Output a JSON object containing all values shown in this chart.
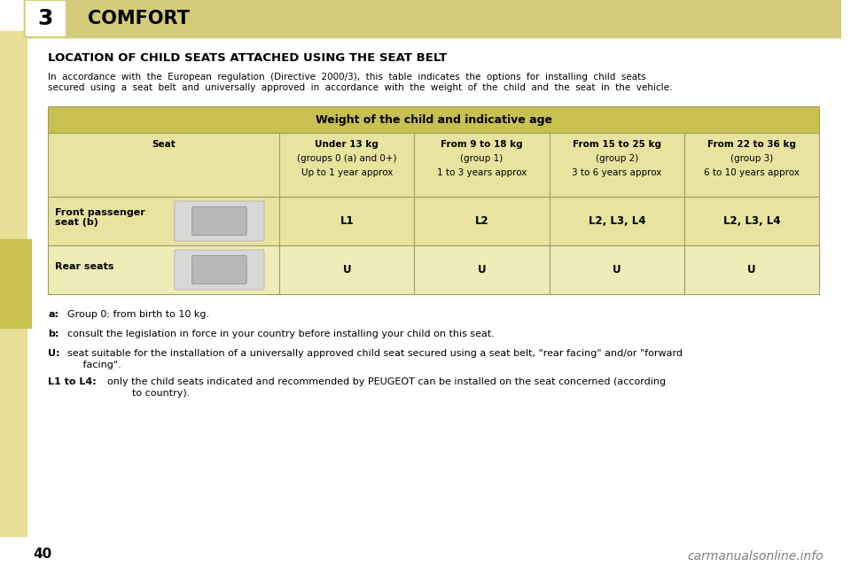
{
  "bg_color": "#f5f5dc",
  "page_bg": "#ffffff",
  "header_bg": "#d4cc7a",
  "header_text_color": "#1a1a1a",
  "chapter_num": "3",
  "chapter_title": "COMFORT",
  "section_title": "LOCATION OF CHILD SEATS ATTACHED USING THE SEAT BELT",
  "intro_text": "In  accordance  with  the  European  regulation  (Directive  2000/3),  this  table  indicates  the  options  for  installing  child  seats\nsecured  using  a  seat  belt  and  universally  approved  in  accordance  with  the  weight  of  the  child  and  the  seat  in  the  vehicle.",
  "table_header_bg": "#c8c050",
  "table_row_bg": "#e8e4a0",
  "table_alt_bg": "#f0ecb8",
  "table_border": "#a0a060",
  "table_title": "Weight of the child and indicative age",
  "col_headers": [
    "Seat",
    "Under 13 kg\n(groups 0 (a) and 0+)\nUp to 1 year approx",
    "From 9 to 18 kg\n(group 1)\n1 to 3 years approx",
    "From 15 to 25 kg\n(group 2)\n3 to 6 years approx",
    "From 22 to 36 kg\n(group 3)\n6 to 10 years approx"
  ],
  "rows": [
    {
      "seat": "Front passenger\nseat (b)",
      "values": [
        "L1",
        "L2",
        "L2, L3, L4",
        "L2, L3, L4"
      ]
    },
    {
      "seat": "Rear seats",
      "values": [
        "U",
        "U",
        "U",
        "U"
      ]
    }
  ],
  "footnotes": [
    {
      "key": "a:",
      "bold_key": false,
      "text": "  Group 0: from birth to 10 kg."
    },
    {
      "key": "b:",
      "bold_key": false,
      "text": "  consult the legislation in force in your country before installing your child on this seat."
    },
    {
      "key": "U:",
      "bold_key": false,
      "text": "  seat suitable for the installation of a universally approved child seat secured using a seat belt, \"rear facing\" and/or \"forward\n       facing\"."
    },
    {
      "key": "L1 to L4:",
      "bold_key": true,
      "text": "  only the child seats indicated and recommended by PEUGEOT can be installed on the seat concerned (according\n          to country)."
    }
  ],
  "page_number": "40",
  "watermark": "carmanualsonline.info",
  "left_tab_color": "#c8c050",
  "left_sidebar_color": "#e8e098"
}
